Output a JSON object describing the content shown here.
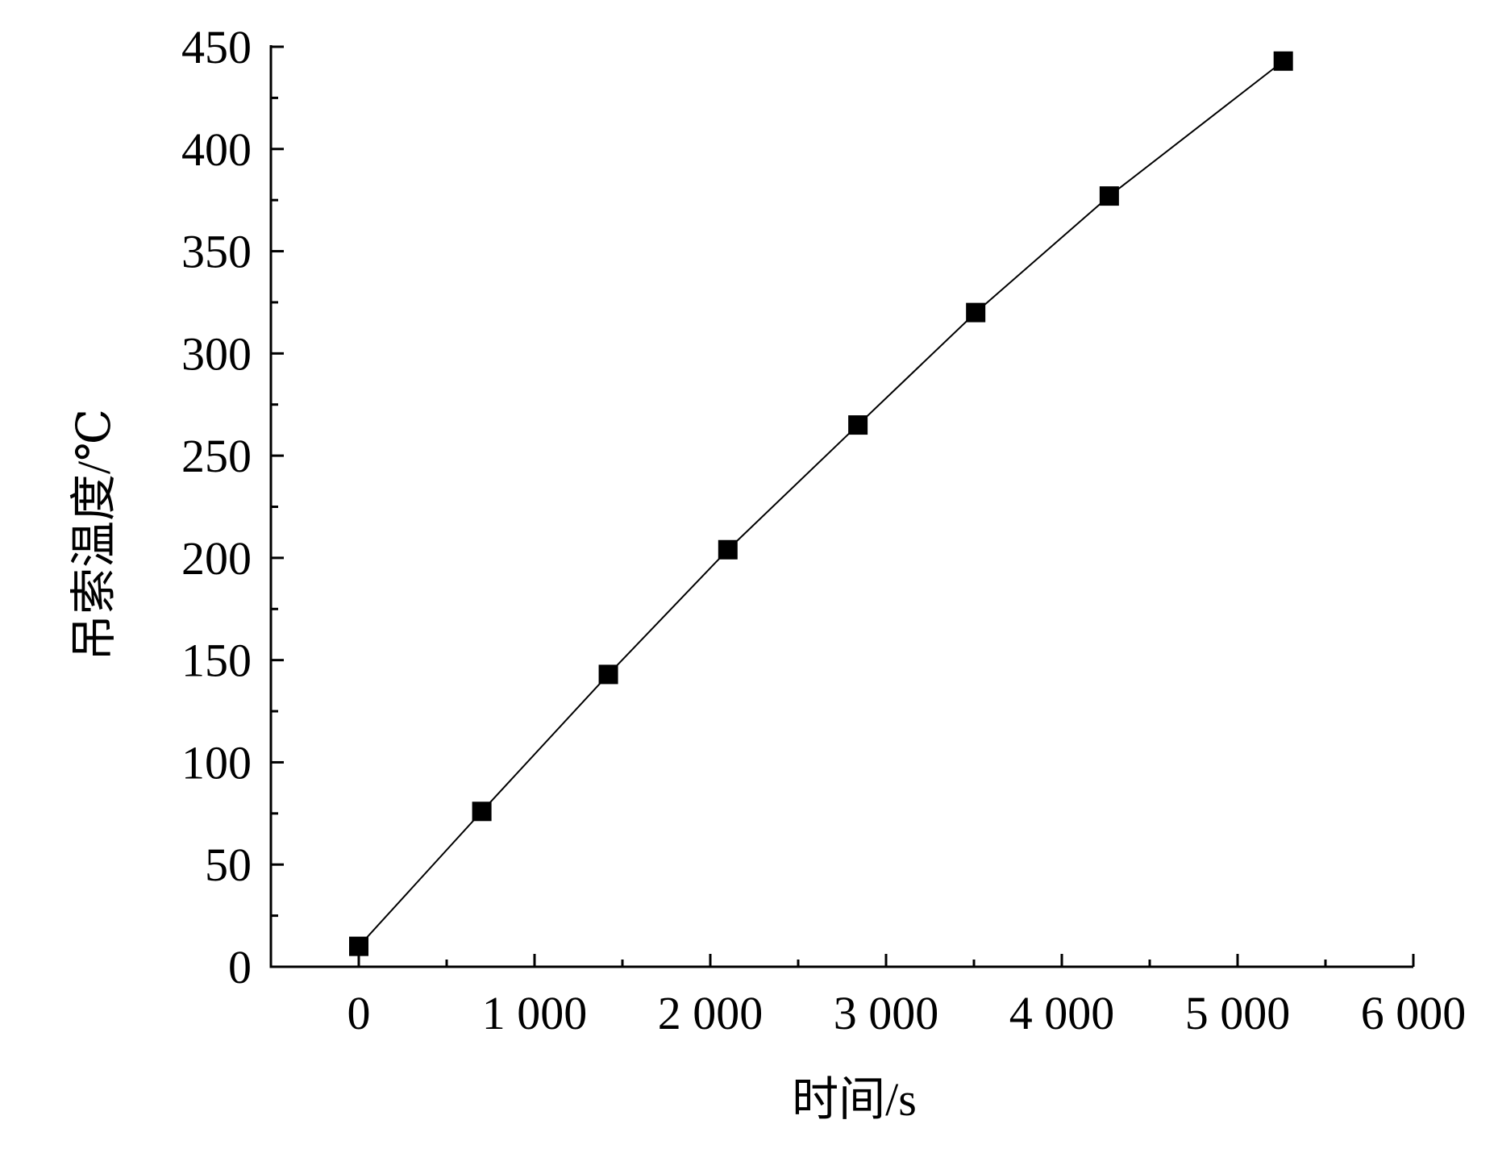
{
  "chart_data": {
    "type": "line",
    "title": "",
    "xlabel": "时间/s",
    "ylabel": "吊索温度/℃",
    "xlim": [
      -500,
      6000
    ],
    "ylim": [
      0,
      450
    ],
    "x_ticks": [
      0,
      1000,
      2000,
      3000,
      4000,
      5000,
      6000
    ],
    "x_tick_labels": [
      "0",
      "1 000",
      "2 000",
      "3 000",
      "4 000",
      "5 000",
      "6 000"
    ],
    "x_minor_ticks": [
      500,
      1500,
      2500,
      3500,
      4500,
      5500
    ],
    "y_ticks": [
      0,
      50,
      100,
      150,
      200,
      250,
      300,
      350,
      400,
      450
    ],
    "y_tick_labels": [
      "0",
      "50",
      "100",
      "150",
      "200",
      "250",
      "300",
      "350",
      "400",
      "450"
    ],
    "grid": false,
    "marker": "square",
    "line_color": "#000000",
    "marker_color": "#000000",
    "series": [
      {
        "x": [
          0,
          700,
          1420,
          2100,
          2840,
          3510,
          4270,
          5260
        ],
        "y": [
          10,
          76,
          143,
          204,
          265,
          320,
          377,
          443
        ]
      }
    ]
  }
}
